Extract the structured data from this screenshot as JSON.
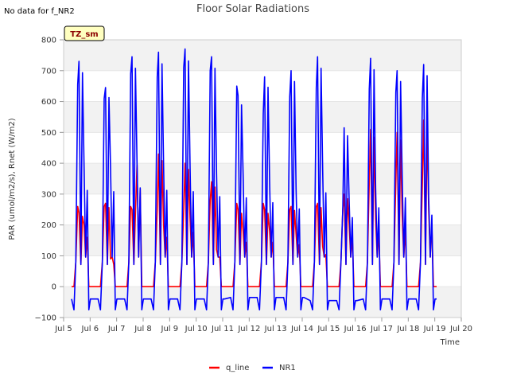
{
  "chart_data": {
    "type": "line",
    "title": "Floor Solar Radiations",
    "note": "No data for f_NR2",
    "badge": "TZ_sm",
    "xlabel": "Time",
    "ylabel": "PAR (umol/m2/s), Rnet (W/m2)",
    "xlim": [
      5,
      20
    ],
    "ylim": [
      -100,
      800
    ],
    "x_ticks": [
      5,
      6,
      7,
      8,
      9,
      10,
      11,
      12,
      13,
      14,
      15,
      16,
      17,
      18,
      19,
      20
    ],
    "x_tick_labels": [
      "Jul 5",
      "Jul 6",
      "Jul 7",
      "Jul 8",
      "Jul 9",
      "Jul 10",
      "Jul 11",
      "Jul 12",
      "Jul 13",
      "Jul 14",
      "Jul 15",
      "Jul 16",
      "Jul 17",
      "Jul 18",
      "Jul 19",
      "Jul 20"
    ],
    "y_ticks": [
      -100,
      0,
      100,
      200,
      300,
      400,
      500,
      600,
      700,
      800
    ],
    "y_tick_labels": [
      "−100",
      "0",
      "100",
      "200",
      "300",
      "400",
      "500",
      "600",
      "700",
      "800"
    ],
    "grid": "horizontal bands",
    "legend_position": "bottom-center",
    "series": [
      {
        "name": "q_line",
        "color": "#ff0000",
        "days": [
          {
            "day": 5,
            "peaks": [
              260,
              240,
              200
            ],
            "night": 0
          },
          {
            "day": 6,
            "peaks": [
              260,
              270,
              90
            ],
            "night": 0
          },
          {
            "day": 7,
            "peaks": [
              260,
              250,
              395
            ],
            "night": 0
          },
          {
            "day": 8,
            "peaks": [
              250,
              430,
              200
            ],
            "night": 0
          },
          {
            "day": 9,
            "peaks": [
              250,
              400,
              220
            ],
            "night": 0
          },
          {
            "day": 10,
            "peaks": [
              280,
              340,
              120
            ],
            "night": 0
          },
          {
            "day": 11,
            "peaks": [
              270,
              250,
              180
            ],
            "night": 0
          },
          {
            "day": 12,
            "peaks": [
              270,
              250,
              180
            ],
            "night": 0
          },
          {
            "day": 13,
            "peaks": [
              250,
              260,
              170
            ],
            "night": 0
          },
          {
            "day": 14,
            "peaks": [
              260,
              270,
              130
            ],
            "night": 0
          },
          {
            "day": 15,
            "peaks": [
              250,
              300,
              200
            ],
            "night": 0
          },
          {
            "day": 16,
            "peaks": [
              340,
              510,
              220
            ],
            "night": 0
          },
          {
            "day": 17,
            "peaks": [
              340,
              500,
              230
            ],
            "night": 0
          },
          {
            "day": 18,
            "peaks": [
              330,
              540,
              250
            ],
            "night": 0
          }
        ]
      },
      {
        "name": "NR1",
        "color": "#0000ff",
        "days": [
          {
            "day": 5,
            "peaks": [
              655,
              730,
              390
            ],
            "night": -40
          },
          {
            "day": 6,
            "peaks": [
              610,
              645,
              385
            ],
            "night": -40
          },
          {
            "day": 7,
            "peaks": [
              690,
              745,
              400
            ],
            "night": -40
          },
          {
            "day": 8,
            "peaks": [
              680,
              760,
              390
            ],
            "night": -40
          },
          {
            "day": 9,
            "peaks": [
              710,
              770,
              385
            ],
            "night": -40
          },
          {
            "day": 10,
            "peaks": [
              700,
              745,
              365
            ],
            "night": -40
          },
          {
            "day": 11,
            "peaks": [
              650,
              620,
              360
            ],
            "night": -35
          },
          {
            "day": 12,
            "peaks": [
              560,
              680,
              340
            ],
            "night": -35
          },
          {
            "day": 13,
            "peaks": [
              615,
              700,
              315
            ],
            "night": -35
          },
          {
            "day": 14,
            "peaks": [
              645,
              745,
              380
            ],
            "night": -45
          },
          {
            "day": 15,
            "peaks": [
              250,
              515,
              280
            ],
            "night": -45
          },
          {
            "day": 16,
            "peaks": [
              640,
              740,
              320
            ],
            "night": -40
          },
          {
            "day": 17,
            "peaks": [
              630,
              700,
              360
            ],
            "night": -40
          },
          {
            "day": 18,
            "peaks": [
              610,
              720,
              290
            ],
            "night": -40
          }
        ]
      }
    ]
  }
}
